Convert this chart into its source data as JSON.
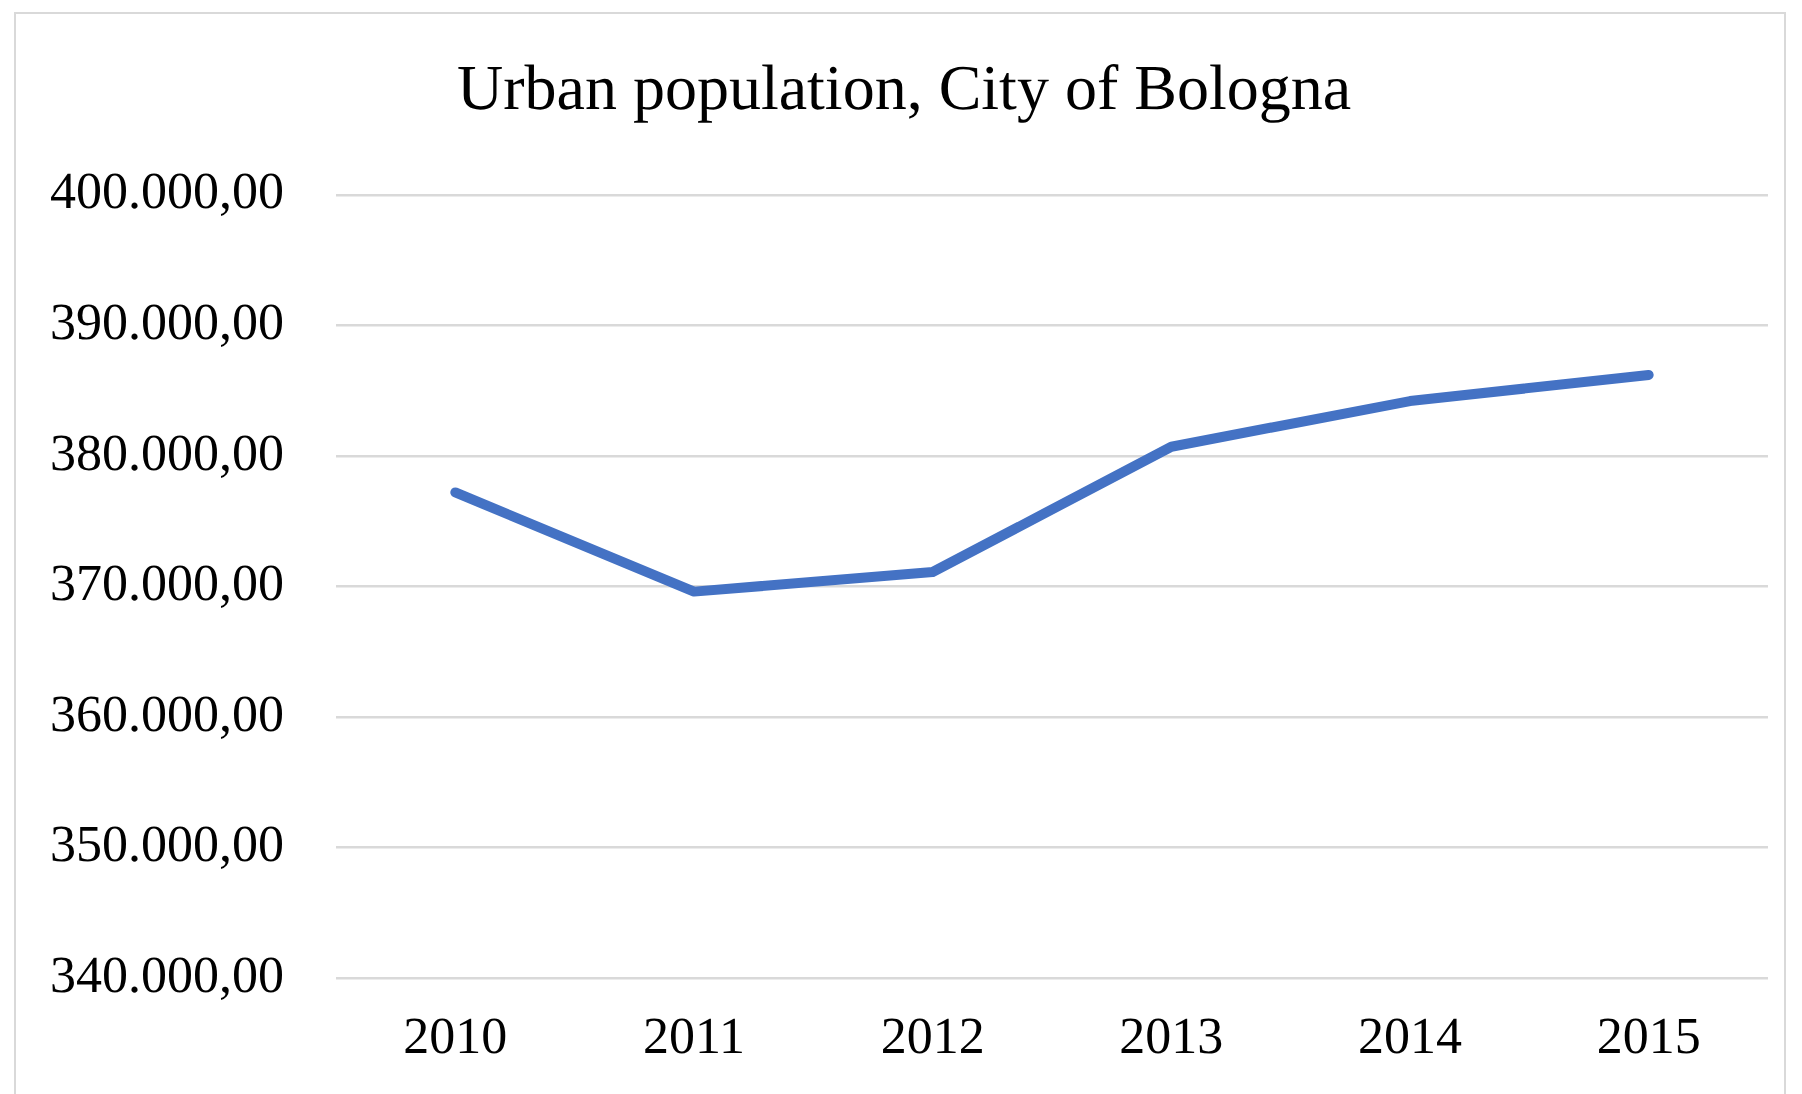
{
  "chart_data": {
    "type": "line",
    "title": "Urban population, City of Bologna",
    "categories": [
      "2010",
      "2011",
      "2012",
      "2013",
      "2014",
      "2015"
    ],
    "series": [
      {
        "color": "#4472c4",
        "values": [
          377200,
          369600,
          371100,
          380700,
          384200,
          386200
        ]
      }
    ],
    "ylim": [
      340000,
      400000
    ],
    "yticks": [
      {
        "value": 340000,
        "label": "340.000,00"
      },
      {
        "value": 350000,
        "label": "350.000,00"
      },
      {
        "value": 360000,
        "label": "360.000,00"
      },
      {
        "value": 370000,
        "label": "370.000,00"
      },
      {
        "value": 380000,
        "label": "380.000,00"
      },
      {
        "value": 390000,
        "label": "390.000,00"
      },
      {
        "value": 400000,
        "label": "400.000,00"
      }
    ],
    "grid": "y",
    "legend": false,
    "marker": "none",
    "line_style": "solid"
  }
}
